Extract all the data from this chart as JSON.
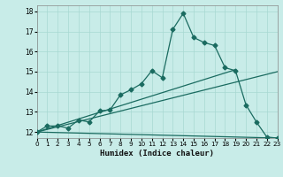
{
  "title": "",
  "xlabel": "Humidex (Indice chaleur)",
  "ylabel": "",
  "background_color": "#c8ece8",
  "grid_color": "#a8d8d2",
  "line_color": "#1a6b60",
  "xlim": [
    0,
    23
  ],
  "ylim": [
    11.7,
    18.3
  ],
  "xticks": [
    0,
    1,
    2,
    3,
    4,
    5,
    6,
    7,
    8,
    9,
    10,
    11,
    12,
    13,
    14,
    15,
    16,
    17,
    18,
    19,
    20,
    21,
    22,
    23
  ],
  "yticks": [
    12,
    13,
    14,
    15,
    16,
    17,
    18
  ],
  "line1_x": [
    0,
    1,
    2,
    3,
    4,
    5,
    6,
    7,
    8,
    9,
    10,
    11,
    12,
    13,
    14,
    15,
    16,
    17,
    18,
    19,
    20,
    21,
    22,
    23
  ],
  "line1_y": [
    12.0,
    12.3,
    12.3,
    12.2,
    12.6,
    12.5,
    13.05,
    13.1,
    13.85,
    14.1,
    14.4,
    15.05,
    14.7,
    17.1,
    17.9,
    16.7,
    16.45,
    16.3,
    15.2,
    15.05,
    13.35,
    12.5,
    11.75,
    11.7
  ],
  "line2_x": [
    0,
    23
  ],
  "line2_y": [
    12.0,
    15.0
  ],
  "line3_x": [
    0,
    19
  ],
  "line3_y": [
    12.0,
    15.1
  ],
  "line4_x": [
    0,
    23
  ],
  "line4_y": [
    12.0,
    11.7
  ],
  "marker": "D",
  "markersize": 2.5,
  "linewidth": 0.9
}
